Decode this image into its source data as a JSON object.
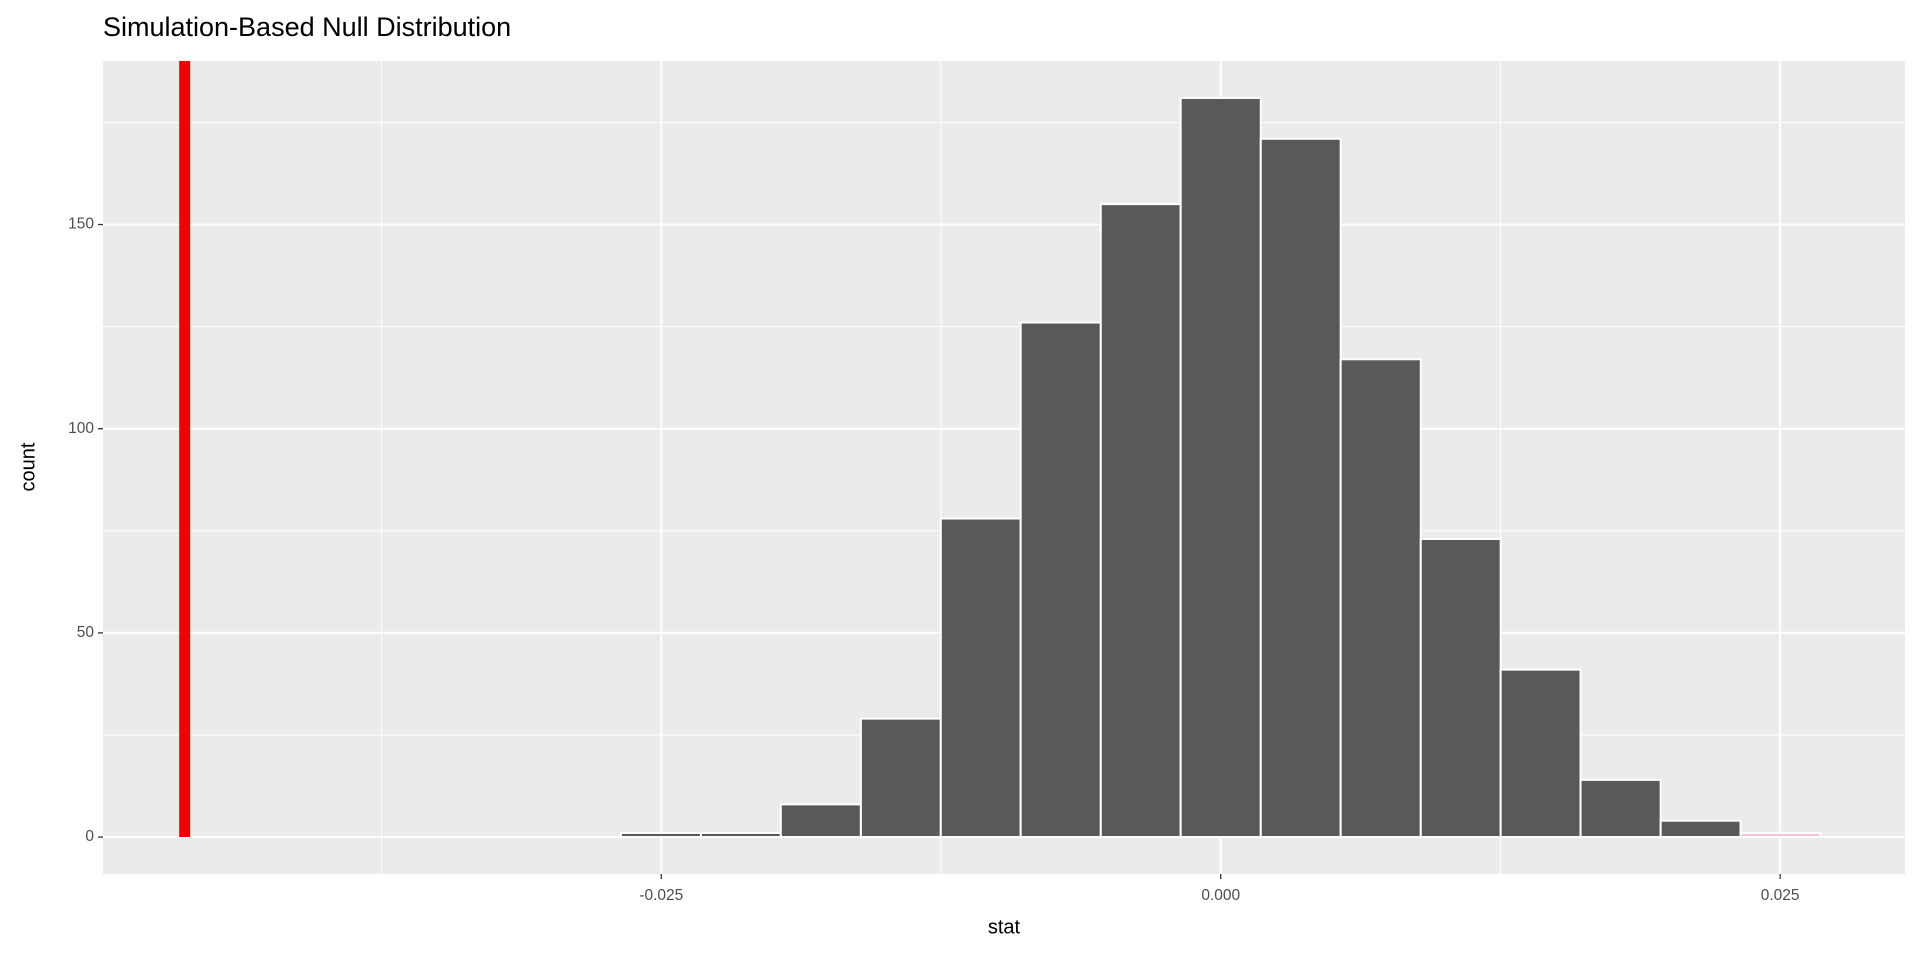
{
  "chart_data": {
    "type": "histogram",
    "title": "Simulation-Based Null Distribution",
    "xlabel": "stat",
    "ylabel": "count",
    "bins": [
      -0.0268,
      -0.02323,
      -0.01966,
      -0.01608,
      -0.01251,
      -0.00894,
      -0.00536,
      -0.00179,
      0.00179,
      0.00536,
      0.00894,
      0.01251,
      0.01608,
      0.01966,
      0.02323,
      0.0268
    ],
    "counts": [
      1,
      1,
      8,
      29,
      78,
      126,
      155,
      181,
      171,
      117,
      73,
      41,
      14,
      4,
      1
    ],
    "colors": [
      "#595959",
      "#595959",
      "#595959",
      "#595959",
      "#595959",
      "#595959",
      "#595959",
      "#595959",
      "#595959",
      "#595959",
      "#595959",
      "#595959",
      "#595959",
      "#595959",
      "#f4c6cf"
    ],
    "observed_stat": -0.0463,
    "observed_color": "#ee0000",
    "xlim": [
      -0.04995,
      0.03058
    ],
    "ylim": [
      -9.05,
      190.05
    ],
    "xticks": [
      -0.025,
      {
        "value": 0,
        "label": "0.000"
      },
      0.025
    ],
    "yticks": [
      0,
      50,
      100,
      150
    ],
    "x_minor_grid": [
      -0.0375,
      -0.0125,
      0.0125
    ],
    "y_minor_grid": [
      25,
      75,
      125,
      175
    ],
    "grid": true
  }
}
